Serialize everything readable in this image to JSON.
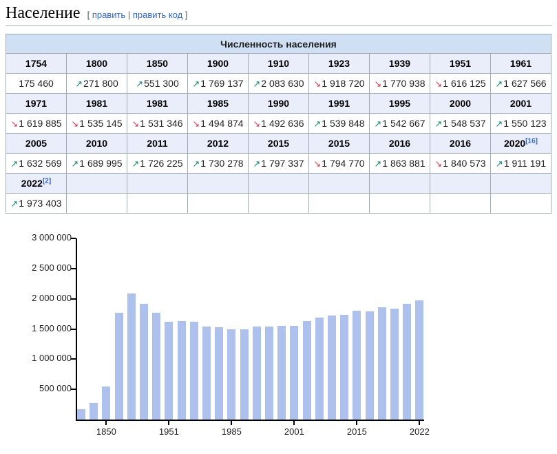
{
  "page": {
    "title": "Население",
    "edit_section": {
      "open_bracket": "[",
      "edit_label": "править",
      "separator": "|",
      "edit_code_label": "править код",
      "close_bracket": "]"
    }
  },
  "colors": {
    "caption_bg": "#cfe0f4",
    "year_row_bg": "#e9eefa",
    "table_border": "#a2a9b1",
    "link": "#3366cc",
    "arrow_up": "#12876f",
    "arrow_down": "#d23b52",
    "bar": "#aec1ed",
    "axis": "#000000"
  },
  "icons": {
    "trend_up": "↗",
    "trend_down": "↘"
  },
  "table": {
    "caption": "Численность населения",
    "columns": 9,
    "row_groups": [
      {
        "years": [
          {
            "label": "1754",
            "sup": null
          },
          {
            "label": "1800",
            "sup": null
          },
          {
            "label": "1850",
            "sup": null
          },
          {
            "label": "1900",
            "sup": null
          },
          {
            "label": "1910",
            "sup": null
          },
          {
            "label": "1923",
            "sup": null
          },
          {
            "label": "1939",
            "sup": null
          },
          {
            "label": "1951",
            "sup": null
          },
          {
            "label": "1961",
            "sup": null
          }
        ],
        "values": [
          {
            "arrow": "none",
            "text": "175 460"
          },
          {
            "arrow": "up",
            "text": "271 800"
          },
          {
            "arrow": "up",
            "text": "551 300"
          },
          {
            "arrow": "up",
            "text": "1 769 137"
          },
          {
            "arrow": "up",
            "text": "2 083 630"
          },
          {
            "arrow": "down",
            "text": "1 918 720"
          },
          {
            "arrow": "down",
            "text": "1 770 938"
          },
          {
            "arrow": "down",
            "text": "1 616 125"
          },
          {
            "arrow": "up",
            "text": "1 627 566"
          }
        ]
      },
      {
        "years": [
          {
            "label": "1971",
            "sup": null
          },
          {
            "label": "1981",
            "sup": null
          },
          {
            "label": "1981",
            "sup": null
          },
          {
            "label": "1985",
            "sup": null
          },
          {
            "label": "1990",
            "sup": null
          },
          {
            "label": "1991",
            "sup": null
          },
          {
            "label": "1995",
            "sup": null
          },
          {
            "label": "2000",
            "sup": null
          },
          {
            "label": "2001",
            "sup": null
          }
        ],
        "values": [
          {
            "arrow": "down",
            "text": "1 619 885"
          },
          {
            "arrow": "down",
            "text": "1 535 145"
          },
          {
            "arrow": "down",
            "text": "1 531 346"
          },
          {
            "arrow": "down",
            "text": "1 494 874"
          },
          {
            "arrow": "down",
            "text": "1 492 636"
          },
          {
            "arrow": "up",
            "text": "1 539 848"
          },
          {
            "arrow": "up",
            "text": "1 542 667"
          },
          {
            "arrow": "up",
            "text": "1 548 537"
          },
          {
            "arrow": "up",
            "text": "1 550 123"
          }
        ]
      },
      {
        "years": [
          {
            "label": "2005",
            "sup": null
          },
          {
            "label": "2010",
            "sup": null
          },
          {
            "label": "2011",
            "sup": null
          },
          {
            "label": "2012",
            "sup": null
          },
          {
            "label": "2015",
            "sup": null
          },
          {
            "label": "2015",
            "sup": null
          },
          {
            "label": "2016",
            "sup": null
          },
          {
            "label": "2016",
            "sup": null
          },
          {
            "label": "2020",
            "sup": "[16]"
          }
        ],
        "values": [
          {
            "arrow": "up",
            "text": "1 632 569"
          },
          {
            "arrow": "up",
            "text": "1 689 995"
          },
          {
            "arrow": "up",
            "text": "1 726 225"
          },
          {
            "arrow": "up",
            "text": "1 730 278"
          },
          {
            "arrow": "up",
            "text": "1 797 337"
          },
          {
            "arrow": "down",
            "text": "1 794 770"
          },
          {
            "arrow": "up",
            "text": "1 863 881"
          },
          {
            "arrow": "down",
            "text": "1 840 573"
          },
          {
            "arrow": "up",
            "text": "1 911 191"
          }
        ]
      },
      {
        "years": [
          {
            "label": "2022",
            "sup": "[2]"
          },
          null,
          null,
          null,
          null,
          null,
          null,
          null,
          null
        ],
        "values": [
          {
            "arrow": "up",
            "text": "1 973 403"
          },
          null,
          null,
          null,
          null,
          null,
          null,
          null,
          null
        ]
      }
    ]
  },
  "chart_data": {
    "type": "bar",
    "title": "",
    "xlabel": "",
    "ylabel": "",
    "x": [
      1754,
      1800,
      1850,
      1900,
      1910,
      1923,
      1939,
      1951,
      1961,
      1971,
      1981,
      1981,
      1985,
      1990,
      1991,
      1995,
      2000,
      2001,
      2005,
      2010,
      2011,
      2012,
      2015,
      2015,
      2016,
      2016,
      2020,
      2022
    ],
    "values": [
      175460,
      271800,
      551300,
      1769137,
      2083630,
      1918720,
      1770938,
      1616125,
      1627566,
      1619885,
      1535145,
      1531346,
      1494874,
      1492636,
      1539848,
      1542667,
      1548537,
      1550123,
      1632569,
      1689995,
      1726225,
      1730278,
      1797337,
      1794770,
      1863881,
      1840573,
      1911191,
      1973403
    ],
    "ylim": [
      0,
      3000000
    ],
    "grid": false,
    "legend": null,
    "yticks": [
      {
        "value": 500000,
        "label": "500 000"
      },
      {
        "value": 1000000,
        "label": "1 000 000"
      },
      {
        "value": 1500000,
        "label": "1 500 000"
      },
      {
        "value": 2000000,
        "label": "2 000 000"
      },
      {
        "value": 2500000,
        "label": "2 500 000"
      },
      {
        "value": 3000000,
        "label": "3 000 000"
      }
    ],
    "xticks": [
      {
        "index": 2,
        "label": "1850"
      },
      {
        "index": 7,
        "label": "1951"
      },
      {
        "index": 12,
        "label": "1985"
      },
      {
        "index": 17,
        "label": "2001"
      },
      {
        "index": 22,
        "label": "2015"
      },
      {
        "index": 27,
        "label": "2022"
      }
    ]
  }
}
